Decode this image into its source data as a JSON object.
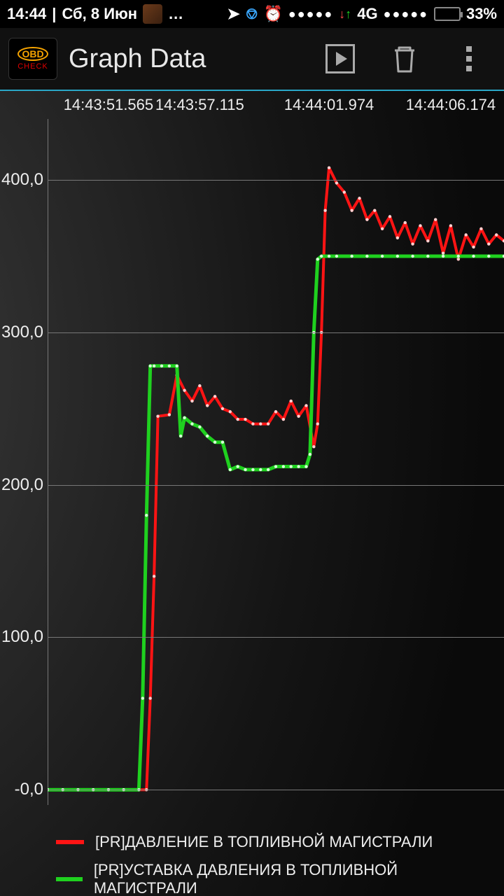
{
  "status": {
    "time": "14:44",
    "date": "Сб, 8 Июн",
    "battery_text": "33%",
    "battery_pct": 33,
    "network_label": "4G",
    "loc_icon_color": "#ffffff",
    "bt_icon_color": "#3aa8ff",
    "alarm_icon_color": "#ff2a2a"
  },
  "appbar": {
    "title": "Graph Data",
    "logo_top": "OBD",
    "logo_bottom": "CHECK"
  },
  "chart": {
    "type": "line",
    "background_color": "#1a1a1a",
    "grid_color": "#777777",
    "axis_font_size": 22,
    "y": {
      "min": -10,
      "max": 440,
      "ticks": [
        {
          "v": 0,
          "label": "-0,0"
        },
        {
          "v": 100,
          "label": "100,0"
        },
        {
          "v": 200,
          "label": "200,0"
        },
        {
          "v": 300,
          "label": "300,0"
        },
        {
          "v": 400,
          "label": "400,0"
        }
      ]
    },
    "x": {
      "min": 0,
      "max": 60,
      "time_ticks": [
        {
          "pos": 8,
          "label": "14:43:51.565"
        },
        {
          "pos": 20,
          "label": "14:43:57.115"
        },
        {
          "pos": 37,
          "label": "14:44:01.974"
        },
        {
          "pos": 53,
          "label": "14:44:06.174"
        }
      ]
    },
    "series": [
      {
        "name": "[PR]ДАВЛЕНИЕ В ТОПЛИВНОЙ МАГИСТРАЛИ",
        "color": "#ff1414",
        "line_width": 4,
        "marker_size": 2.2,
        "marker_color": "#ffd0d0",
        "data": [
          [
            0,
            0
          ],
          [
            2,
            0
          ],
          [
            4,
            0
          ],
          [
            6,
            0
          ],
          [
            8,
            0
          ],
          [
            10,
            0
          ],
          [
            12,
            0
          ],
          [
            13,
            0
          ],
          [
            13.5,
            60
          ],
          [
            14,
            140
          ],
          [
            14.5,
            245
          ],
          [
            16,
            246
          ],
          [
            17,
            272
          ],
          [
            18,
            262
          ],
          [
            19,
            255
          ],
          [
            20,
            265
          ],
          [
            21,
            252
          ],
          [
            22,
            258
          ],
          [
            23,
            250
          ],
          [
            24,
            248
          ],
          [
            25,
            243
          ],
          [
            26,
            243
          ],
          [
            27,
            240
          ],
          [
            28,
            240
          ],
          [
            29,
            240
          ],
          [
            30,
            248
          ],
          [
            31,
            243
          ],
          [
            32,
            255
          ],
          [
            33,
            245
          ],
          [
            34,
            252
          ],
          [
            35,
            225
          ],
          [
            35.5,
            240
          ],
          [
            36,
            300
          ],
          [
            36.5,
            380
          ],
          [
            37,
            408
          ],
          [
            38,
            398
          ],
          [
            39,
            392
          ],
          [
            40,
            380
          ],
          [
            41,
            388
          ],
          [
            42,
            374
          ],
          [
            43,
            380
          ],
          [
            44,
            368
          ],
          [
            45,
            376
          ],
          [
            46,
            362
          ],
          [
            47,
            372
          ],
          [
            48,
            358
          ],
          [
            49,
            370
          ],
          [
            50,
            360
          ],
          [
            51,
            374
          ],
          [
            52,
            352
          ],
          [
            53,
            370
          ],
          [
            54,
            348
          ],
          [
            55,
            364
          ],
          [
            56,
            356
          ],
          [
            57,
            368
          ],
          [
            58,
            358
          ],
          [
            59,
            364
          ],
          [
            60,
            360
          ]
        ]
      },
      {
        "name": "[PR]УСТАВКА ДАВЛЕНИЯ В ТОПЛИВНОЙ МАГИСТРАЛИ",
        "color": "#1fd11f",
        "line_width": 5,
        "marker_size": 2.2,
        "marker_color": "#d8ffd8",
        "data": [
          [
            0,
            0
          ],
          [
            2,
            0
          ],
          [
            4,
            0
          ],
          [
            6,
            0
          ],
          [
            8,
            0
          ],
          [
            10,
            0
          ],
          [
            12,
            0
          ],
          [
            12.5,
            60
          ],
          [
            13,
            180
          ],
          [
            13.5,
            278
          ],
          [
            14,
            278
          ],
          [
            15,
            278
          ],
          [
            16,
            278
          ],
          [
            17,
            278
          ],
          [
            17.5,
            232
          ],
          [
            18,
            244
          ],
          [
            19,
            240
          ],
          [
            20,
            238
          ],
          [
            21,
            232
          ],
          [
            22,
            228
          ],
          [
            23,
            228
          ],
          [
            24,
            210
          ],
          [
            25,
            212
          ],
          [
            26,
            210
          ],
          [
            27,
            210
          ],
          [
            28,
            210
          ],
          [
            29,
            210
          ],
          [
            30,
            212
          ],
          [
            31,
            212
          ],
          [
            32,
            212
          ],
          [
            33,
            212
          ],
          [
            34,
            212
          ],
          [
            34.5,
            220
          ],
          [
            35,
            300
          ],
          [
            35.5,
            348
          ],
          [
            36,
            350
          ],
          [
            37,
            350
          ],
          [
            38,
            350
          ],
          [
            40,
            350
          ],
          [
            42,
            350
          ],
          [
            44,
            350
          ],
          [
            46,
            350
          ],
          [
            48,
            350
          ],
          [
            50,
            350
          ],
          [
            52,
            350
          ],
          [
            54,
            350
          ],
          [
            56,
            350
          ],
          [
            58,
            350
          ],
          [
            60,
            350
          ]
        ]
      }
    ]
  }
}
